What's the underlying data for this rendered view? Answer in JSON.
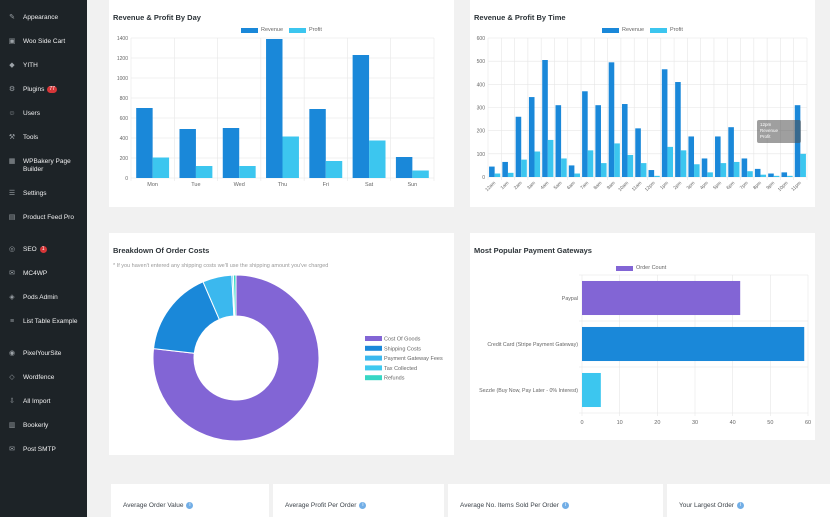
{
  "sidebar": {
    "items": [
      {
        "label": "Appearance",
        "icon": "paintbrush-icon"
      },
      {
        "label": "Woo Side Cart",
        "icon": "cart-icon"
      },
      {
        "label": "YITH",
        "icon": "yith-icon"
      },
      {
        "label": "Plugins",
        "icon": "plugin-icon",
        "badge": "77"
      },
      {
        "label": "Users",
        "icon": "users-icon"
      },
      {
        "label": "Tools",
        "icon": "wrench-icon"
      },
      {
        "label": "WPBakery Page Builder",
        "icon": "wpbakery-icon"
      },
      {
        "label": "Settings",
        "icon": "settings-icon"
      },
      {
        "label": "Product Feed Pro",
        "icon": "feed-icon"
      },
      {
        "label": "SEO",
        "icon": "seo-icon",
        "badge": "1"
      },
      {
        "label": "MC4WP",
        "icon": "mc4wp-icon"
      },
      {
        "label": "Pods Admin",
        "icon": "pods-icon"
      },
      {
        "label": "List Table Example",
        "icon": "list-icon"
      },
      {
        "label": "PixelYourSite",
        "icon": "pixel-icon"
      },
      {
        "label": "Wordfence",
        "icon": "shield-icon"
      },
      {
        "label": "All Import",
        "icon": "import-icon"
      },
      {
        "label": "Bookerly",
        "icon": "calendar-icon"
      },
      {
        "label": "Post SMTP",
        "icon": "mail-icon"
      }
    ]
  },
  "colors": {
    "revenue": "#1a88d9",
    "profit": "#3cc6ef",
    "cost_of_goods": "#8265d5",
    "shipping_costs": "#1a88d9",
    "payment_fees": "#3bb8ee",
    "tax_collected": "#3fc9ef",
    "refunds": "#37d6c4",
    "order_count": "#8265d5"
  },
  "cards": {
    "by_day": {
      "title": "Revenue & Profit By Day"
    },
    "by_time": {
      "title": "Revenue & Profit By Time"
    },
    "order_costs": {
      "title": "Breakdown Of Order Costs",
      "subtitle": "* If you haven't entered any shipping costs we'll use the shipping amount you've charged"
    },
    "gateways": {
      "title": "Most Popular Payment Gateways"
    }
  },
  "stats": [
    {
      "label": "Average Order Value"
    },
    {
      "label": "Average Profit Per Order"
    },
    {
      "label": "Average No. Items Sold Per Order"
    },
    {
      "label": "Your Largest Order"
    }
  ],
  "tooltip": {
    "line1": "12pm",
    "line2": "Revenue",
    "line3": "Profit"
  },
  "chart_data": [
    {
      "type": "bar",
      "title": "Revenue & Profit By Day",
      "categories": [
        "Mon",
        "Tue",
        "Wed",
        "Thu",
        "Fri",
        "Sat",
        "Sun"
      ],
      "series": [
        {
          "name": "Revenue",
          "values": [
            700,
            490,
            500,
            1390,
            690,
            1230,
            210
          ]
        },
        {
          "name": "Profit",
          "values": [
            205,
            120,
            120,
            415,
            170,
            375,
            75
          ]
        }
      ],
      "ylim": [
        0,
        1400
      ],
      "yticks": [
        0,
        200,
        400,
        600,
        800,
        1000,
        1200,
        1400
      ],
      "legend": "top"
    },
    {
      "type": "bar",
      "title": "Revenue & Profit By Time",
      "categories": [
        "12am",
        "1am",
        "2am",
        "3am",
        "4am",
        "5am",
        "6am",
        "7am",
        "8am",
        "9am",
        "10am",
        "11am",
        "12pm",
        "1pm",
        "2pm",
        "3pm",
        "4pm",
        "5pm",
        "6pm",
        "7pm",
        "8pm",
        "9pm",
        "10pm",
        "11pm"
      ],
      "series": [
        {
          "name": "Revenue",
          "values": [
            45,
            65,
            260,
            345,
            505,
            310,
            50,
            370,
            310,
            495,
            315,
            210,
            30,
            465,
            410,
            175,
            80,
            175,
            215,
            80,
            35,
            15,
            20,
            310
          ]
        },
        {
          "name": "Profit",
          "values": [
            15,
            18,
            75,
            110,
            160,
            80,
            15,
            115,
            60,
            145,
            95,
            60,
            5,
            130,
            115,
            55,
            20,
            60,
            65,
            25,
            10,
            5,
            5,
            100
          ]
        }
      ],
      "ylim": [
        0,
        600
      ],
      "yticks": [
        0,
        100,
        200,
        300,
        400,
        500,
        600
      ],
      "legend": "top"
    },
    {
      "type": "pie",
      "title": "Breakdown Of Order Costs",
      "categories": [
        "Cost Of Goods",
        "Shipping Costs",
        "Payment Gateway Fees",
        "Tax Collected",
        "Refunds"
      ],
      "values": [
        76.8,
        16.7,
        5.7,
        0.3,
        0.5
      ],
      "legend": "right"
    },
    {
      "type": "bar",
      "title": "Most Popular Payment Gateways",
      "orientation": "horizontal",
      "categories": [
        "Paypal",
        "Credit Card (Stripe Payment Gateway)",
        "Sezzle (Buy Now, Pay Later - 0% Interest)"
      ],
      "series": [
        {
          "name": "Order Count",
          "values": [
            42,
            59,
            5
          ]
        }
      ],
      "xlim": [
        0,
        60
      ],
      "xticks": [
        0,
        10,
        20,
        30,
        40,
        50,
        60
      ],
      "legend": "top"
    }
  ]
}
